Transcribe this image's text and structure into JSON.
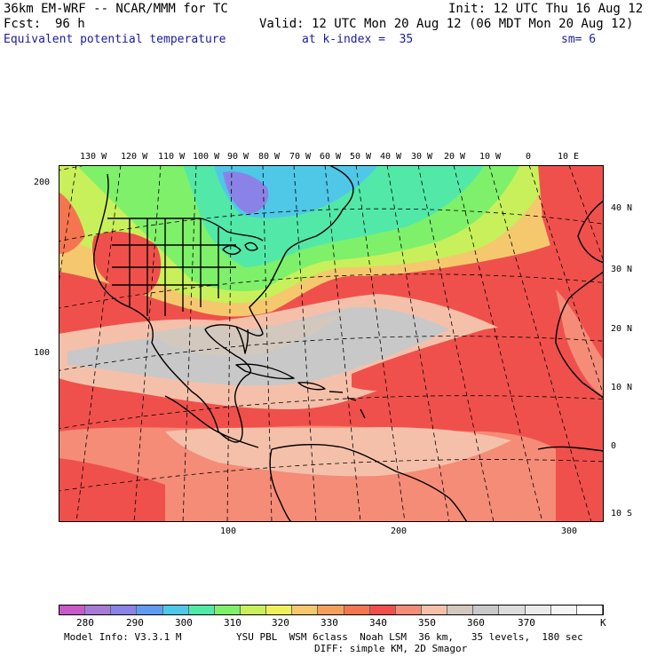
{
  "header": {
    "title": "36km EM-WRF -- NCAR/MMM for TC",
    "init": "Init: 12 UTC Thu 16 Aug 12",
    "fcst_label": "Fcst:",
    "fcst_value": "96 h",
    "valid": "Valid: 12 UTC Mon 20 Aug 12 (06 MDT Mon 20 Aug 12)",
    "field": "Equivalent potential temperature",
    "level": "at k-index =  35",
    "smooth": "sm= 6"
  },
  "map": {
    "top_lon_labels": [
      "130 W",
      "120 W",
      "110 W",
      "100 W",
      "90 W",
      "80 W",
      "70 W",
      "60 W",
      "50 W",
      "40 W",
      "30 W",
      "20 W",
      "10 W",
      "0",
      "10 E"
    ],
    "right_lat_labels": [
      "40 N",
      "30 N",
      "20 N",
      "10 N",
      "0",
      "10 S"
    ],
    "left_grid_labels": [
      "200",
      "100"
    ],
    "bottom_grid_labels": [
      "100",
      "200",
      "300"
    ],
    "colors": {
      "land_outline": "#000000",
      "grid": "#000000"
    }
  },
  "colorbar": {
    "units": "K",
    "labels": [
      "280",
      "290",
      "300",
      "310",
      "320",
      "330",
      "340",
      "350",
      "360",
      "370"
    ],
    "colors": [
      "#c85ac8",
      "#a77ad6",
      "#8a82e6",
      "#5f9bf0",
      "#4ec8e6",
      "#52e8a8",
      "#7ef06a",
      "#c8f05a",
      "#f0f05a",
      "#f5c86e",
      "#f5a05a",
      "#f57550",
      "#f0504b",
      "#f58c78",
      "#f5c0aa",
      "#d2c8be",
      "#c8c8c8",
      "#dcdcdc",
      "#ebebeb",
      "#f5f5f5",
      "#ffffff"
    ]
  },
  "footer": {
    "model_info": "Model Info: V3.3.1 M",
    "physics": "YSU PBL  WSM 6class  Noah LSM  36 km,   35 levels,  180 sec",
    "diffusion": "DIFF: simple KM, 2D Smagor"
  }
}
